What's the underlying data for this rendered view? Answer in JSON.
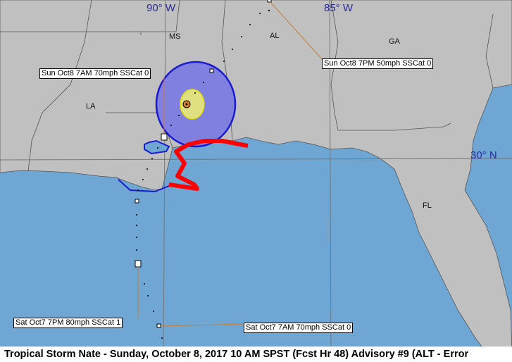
{
  "caption": "Tropical Storm Nate  -  Sunday, October 8, 2017  10 AM SPST (Fcst Hr 48)   Advisory #9 (ALT - Error",
  "longitudes": [
    "90° W",
    "85° W"
  ],
  "latitudes": [
    "30° N"
  ],
  "states": [
    "MS",
    "AL",
    "GA",
    "LA",
    "FL"
  ],
  "forecast_labels": [
    "Sun Oct8 7AM  70mph SSCat 0",
    "Sun Oct8 7PM  50mph SSCat 0",
    "Sat Oct7 7PM  80mph SSCat 1",
    "Sat Oct7 7AM  70mph SSCat 0"
  ],
  "colors": {
    "land": "#c0c0c0",
    "water": "#6ea6d4",
    "warning": "#ff0000",
    "watch": "#1a1ad0",
    "wind_cone": "#8080e0",
    "inner": "#e0e080",
    "label_lat_lon": "#2a2a9a"
  }
}
